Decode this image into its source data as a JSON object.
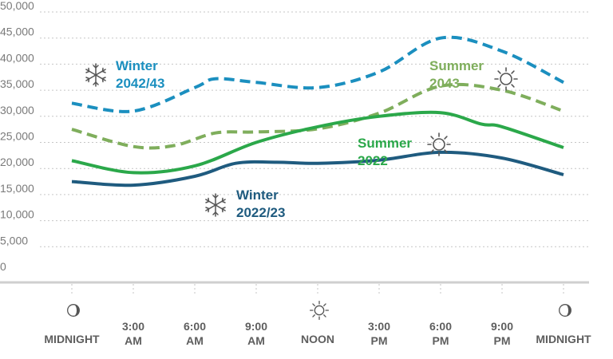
{
  "chart_data": {
    "type": "line",
    "x": [
      "MIDNIGHT",
      "3:00 AM",
      "6:00 AM",
      "9:00 AM",
      "NOON",
      "3:00 PM",
      "6:00 PM",
      "9:00 PM",
      "MIDNIGHT"
    ],
    "x_ticks": [
      {
        "line1": "MIDNIGHT",
        "line2": "",
        "icon": "moon-icon"
      },
      {
        "line1": "3:00",
        "line2": "AM",
        "icon": ""
      },
      {
        "line1": "6:00",
        "line2": "AM",
        "icon": ""
      },
      {
        "line1": "9:00",
        "line2": "AM",
        "icon": ""
      },
      {
        "line1": "NOON",
        "line2": "",
        "icon": "sun-icon"
      },
      {
        "line1": "3:00",
        "line2": "PM",
        "icon": ""
      },
      {
        "line1": "6:00",
        "line2": "PM",
        "icon": ""
      },
      {
        "line1": "9:00",
        "line2": "PM",
        "icon": ""
      },
      {
        "line1": "MIDNIGHT",
        "line2": "",
        "icon": "moon-icon"
      }
    ],
    "y_ticks": [
      "0",
      "5,000",
      "10,000",
      "15,000",
      "20,000",
      "25,000",
      "30,000",
      "35,000",
      "40,000",
      "45,000",
      "50,000"
    ],
    "ylim": [
      0,
      50000
    ],
    "grid": true,
    "series": [
      {
        "name_lines": [
          "Winter",
          "2042/43"
        ],
        "icon": "snowflake-icon",
        "color": "#1b8fbf",
        "dashed": true,
        "points": [
          [
            0,
            32500
          ],
          [
            3,
            31000
          ],
          [
            6,
            35500
          ],
          [
            7,
            37200
          ],
          [
            9,
            36500
          ],
          [
            12,
            35500
          ],
          [
            15,
            38500
          ],
          [
            18,
            45000
          ],
          [
            21,
            42500
          ],
          [
            24,
            36500
          ]
        ]
      },
      {
        "name_lines": [
          "Summer",
          "2043"
        ],
        "icon": "sun-icon",
        "color": "#7fae5c",
        "dashed": true,
        "points": [
          [
            0,
            27500
          ],
          [
            3,
            24200
          ],
          [
            5,
            24400
          ],
          [
            7,
            26800
          ],
          [
            9,
            27000
          ],
          [
            12,
            27600
          ],
          [
            15,
            30600
          ],
          [
            18,
            35800
          ],
          [
            21,
            35000
          ],
          [
            24,
            31000
          ]
        ]
      },
      {
        "name_lines": [
          "Summer",
          "2022"
        ],
        "icon": "sun-icon",
        "color": "#2ba84a",
        "dashed": false,
        "points": [
          [
            0,
            21500
          ],
          [
            3,
            19200
          ],
          [
            6,
            20500
          ],
          [
            9,
            25000
          ],
          [
            12,
            28000
          ],
          [
            15,
            30000
          ],
          [
            18,
            30700
          ],
          [
            20,
            28500
          ],
          [
            21,
            28000
          ],
          [
            24,
            24000
          ]
        ]
      },
      {
        "name_lines": [
          "Winter",
          "2022/23"
        ],
        "icon": "snowflake-icon",
        "color": "#1f5b7f",
        "dashed": false,
        "points": [
          [
            0,
            17500
          ],
          [
            3,
            16800
          ],
          [
            6,
            18500
          ],
          [
            8,
            21000
          ],
          [
            10,
            21200
          ],
          [
            12,
            21000
          ],
          [
            15,
            21600
          ],
          [
            18,
            23100
          ],
          [
            21,
            22000
          ],
          [
            24,
            18800
          ]
        ]
      }
    ]
  }
}
